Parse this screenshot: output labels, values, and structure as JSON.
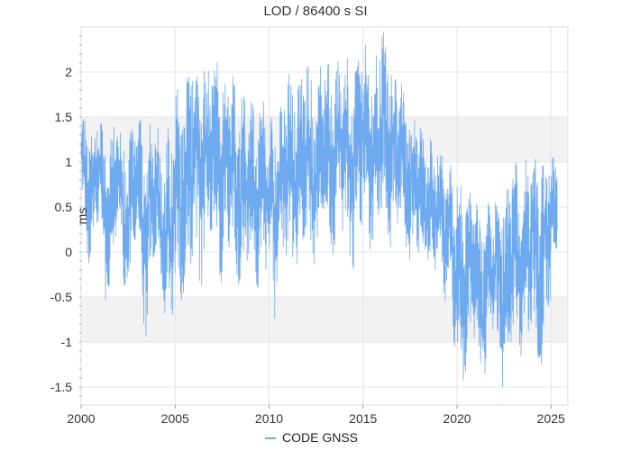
{
  "chart_data": {
    "type": "line",
    "title": "LOD / 86400 s SI",
    "ylabel": "ms",
    "xlabel": "",
    "xlim": [
      2000.0,
      2025.9
    ],
    "ylim": [
      -1.7,
      2.5
    ],
    "x_ticks": [
      2000,
      2005,
      2010,
      2015,
      2020,
      2025
    ],
    "x_tick_labels": [
      "2000",
      "2005",
      "2010",
      "2015",
      "2020",
      "2025"
    ],
    "y_ticks": [
      -1.5,
      -1,
      -0.5,
      0,
      0.5,
      1,
      1.5,
      2
    ],
    "y_tick_labels": [
      "-1.5",
      "-1",
      "-0.5",
      "0",
      "0.5",
      "1",
      "1.5",
      "2"
    ],
    "bands": [
      [
        -1.0,
        -0.5
      ],
      [
        1.0,
        1.5
      ]
    ],
    "band_color": "#f2f2f2",
    "grid": true,
    "legend_position": "bottom",
    "series": [
      {
        "name": "CODE GNSS",
        "color": "#6eaaf0",
        "x": [
          2000.0,
          2000.25,
          2000.5,
          2000.75,
          2001.0,
          2001.25,
          2001.5,
          2001.75,
          2002.0,
          2002.25,
          2002.5,
          2002.75,
          2003.0,
          2003.25,
          2003.5,
          2003.75,
          2004.0,
          2004.25,
          2004.5,
          2004.75,
          2005.0,
          2005.25,
          2005.5,
          2005.75,
          2006.0,
          2006.25,
          2006.5,
          2006.75,
          2007.0,
          2007.25,
          2007.5,
          2007.75,
          2008.0,
          2008.25,
          2008.5,
          2008.75,
          2009.0,
          2009.25,
          2009.5,
          2009.75,
          2010.0,
          2010.25,
          2010.5,
          2010.75,
          2011.0,
          2011.25,
          2011.5,
          2011.75,
          2012.0,
          2012.25,
          2012.5,
          2012.75,
          2013.0,
          2013.25,
          2013.5,
          2013.75,
          2014.0,
          2014.25,
          2014.5,
          2014.75,
          2015.0,
          2015.25,
          2015.5,
          2015.75,
          2016.0,
          2016.25,
          2016.5,
          2016.75,
          2017.0,
          2017.25,
          2017.5,
          2017.75,
          2018.0,
          2018.25,
          2018.5,
          2018.75,
          2019.0,
          2019.25,
          2019.5,
          2019.75,
          2020.0,
          2020.25,
          2020.5,
          2020.75,
          2021.0,
          2021.25,
          2021.5,
          2021.75,
          2022.0,
          2022.25,
          2022.5,
          2022.75,
          2023.0,
          2023.25,
          2023.5,
          2023.75,
          2024.0,
          2024.25,
          2024.5,
          2024.75,
          2025.0,
          2025.25
        ],
        "y_max": [
          1.5,
          1.45,
          1.35,
          1.55,
          1.5,
          1.3,
          1.15,
          1.6,
          1.5,
          1.25,
          1.1,
          1.55,
          1.6,
          1.4,
          1.2,
          1.55,
          1.45,
          1.3,
          1.15,
          1.6,
          1.7,
          1.9,
          1.8,
          2.05,
          2.3,
          2.2,
          2.0,
          2.25,
          2.3,
          2.1,
          1.9,
          2.1,
          2.0,
          1.85,
          1.7,
          1.75,
          1.8,
          1.65,
          1.55,
          1.7,
          1.6,
          1.7,
          1.65,
          1.9,
          2.0,
          1.9,
          1.75,
          2.05,
          2.1,
          2.0,
          1.8,
          2.1,
          2.2,
          2.05,
          1.95,
          2.2,
          2.25,
          2.1,
          1.9,
          2.3,
          2.4,
          2.2,
          2.0,
          2.35,
          2.5,
          2.35,
          2.1,
          2.05,
          1.9,
          1.7,
          1.55,
          1.5,
          1.4,
          1.3,
          1.2,
          1.35,
          1.3,
          1.1,
          0.9,
          1.0,
          0.85,
          0.7,
          0.6,
          0.75,
          0.7,
          0.55,
          0.45,
          0.65,
          0.7,
          0.6,
          0.5,
          0.8,
          1.1,
          0.9,
          0.8,
          1.15,
          1.3,
          1.1,
          0.9,
          1.2,
          1.1,
          1.05
        ],
        "y_min": [
          0.6,
          0.1,
          -0.25,
          0.2,
          0.4,
          -0.5,
          -0.7,
          0.0,
          0.3,
          -0.6,
          -0.75,
          0.0,
          0.2,
          -0.7,
          -1.0,
          -0.2,
          0.1,
          -0.7,
          -0.95,
          -1.1,
          -0.3,
          -0.6,
          -1.05,
          -0.2,
          0.0,
          -0.3,
          -0.5,
          0.0,
          0.1,
          -0.1,
          -0.4,
          0.1,
          0.0,
          -0.2,
          -0.5,
          -0.1,
          -0.1,
          -0.3,
          -0.45,
          -0.2,
          -0.2,
          -0.8,
          -0.5,
          -0.1,
          0.0,
          -0.1,
          -0.3,
          0.1,
          0.2,
          0.0,
          -0.2,
          0.2,
          0.3,
          0.1,
          -0.1,
          0.3,
          0.2,
          0.0,
          -0.2,
          0.3,
          0.3,
          0.1,
          -0.1,
          0.2,
          0.4,
          0.3,
          0.0,
          0.2,
          0.3,
          0.1,
          -0.1,
          0.0,
          0.0,
          -0.1,
          -0.3,
          -0.2,
          -0.4,
          -0.6,
          -0.5,
          -0.9,
          -1.2,
          -1.5,
          -1.3,
          -1.0,
          -1.1,
          -1.4,
          -1.45,
          -0.8,
          -1.0,
          -1.3,
          -1.6,
          -1.1,
          -0.9,
          -1.2,
          -1.3,
          -0.9,
          -0.8,
          -1.4,
          -1.65,
          -0.7,
          -0.5,
          -0.3
        ]
      }
    ]
  }
}
